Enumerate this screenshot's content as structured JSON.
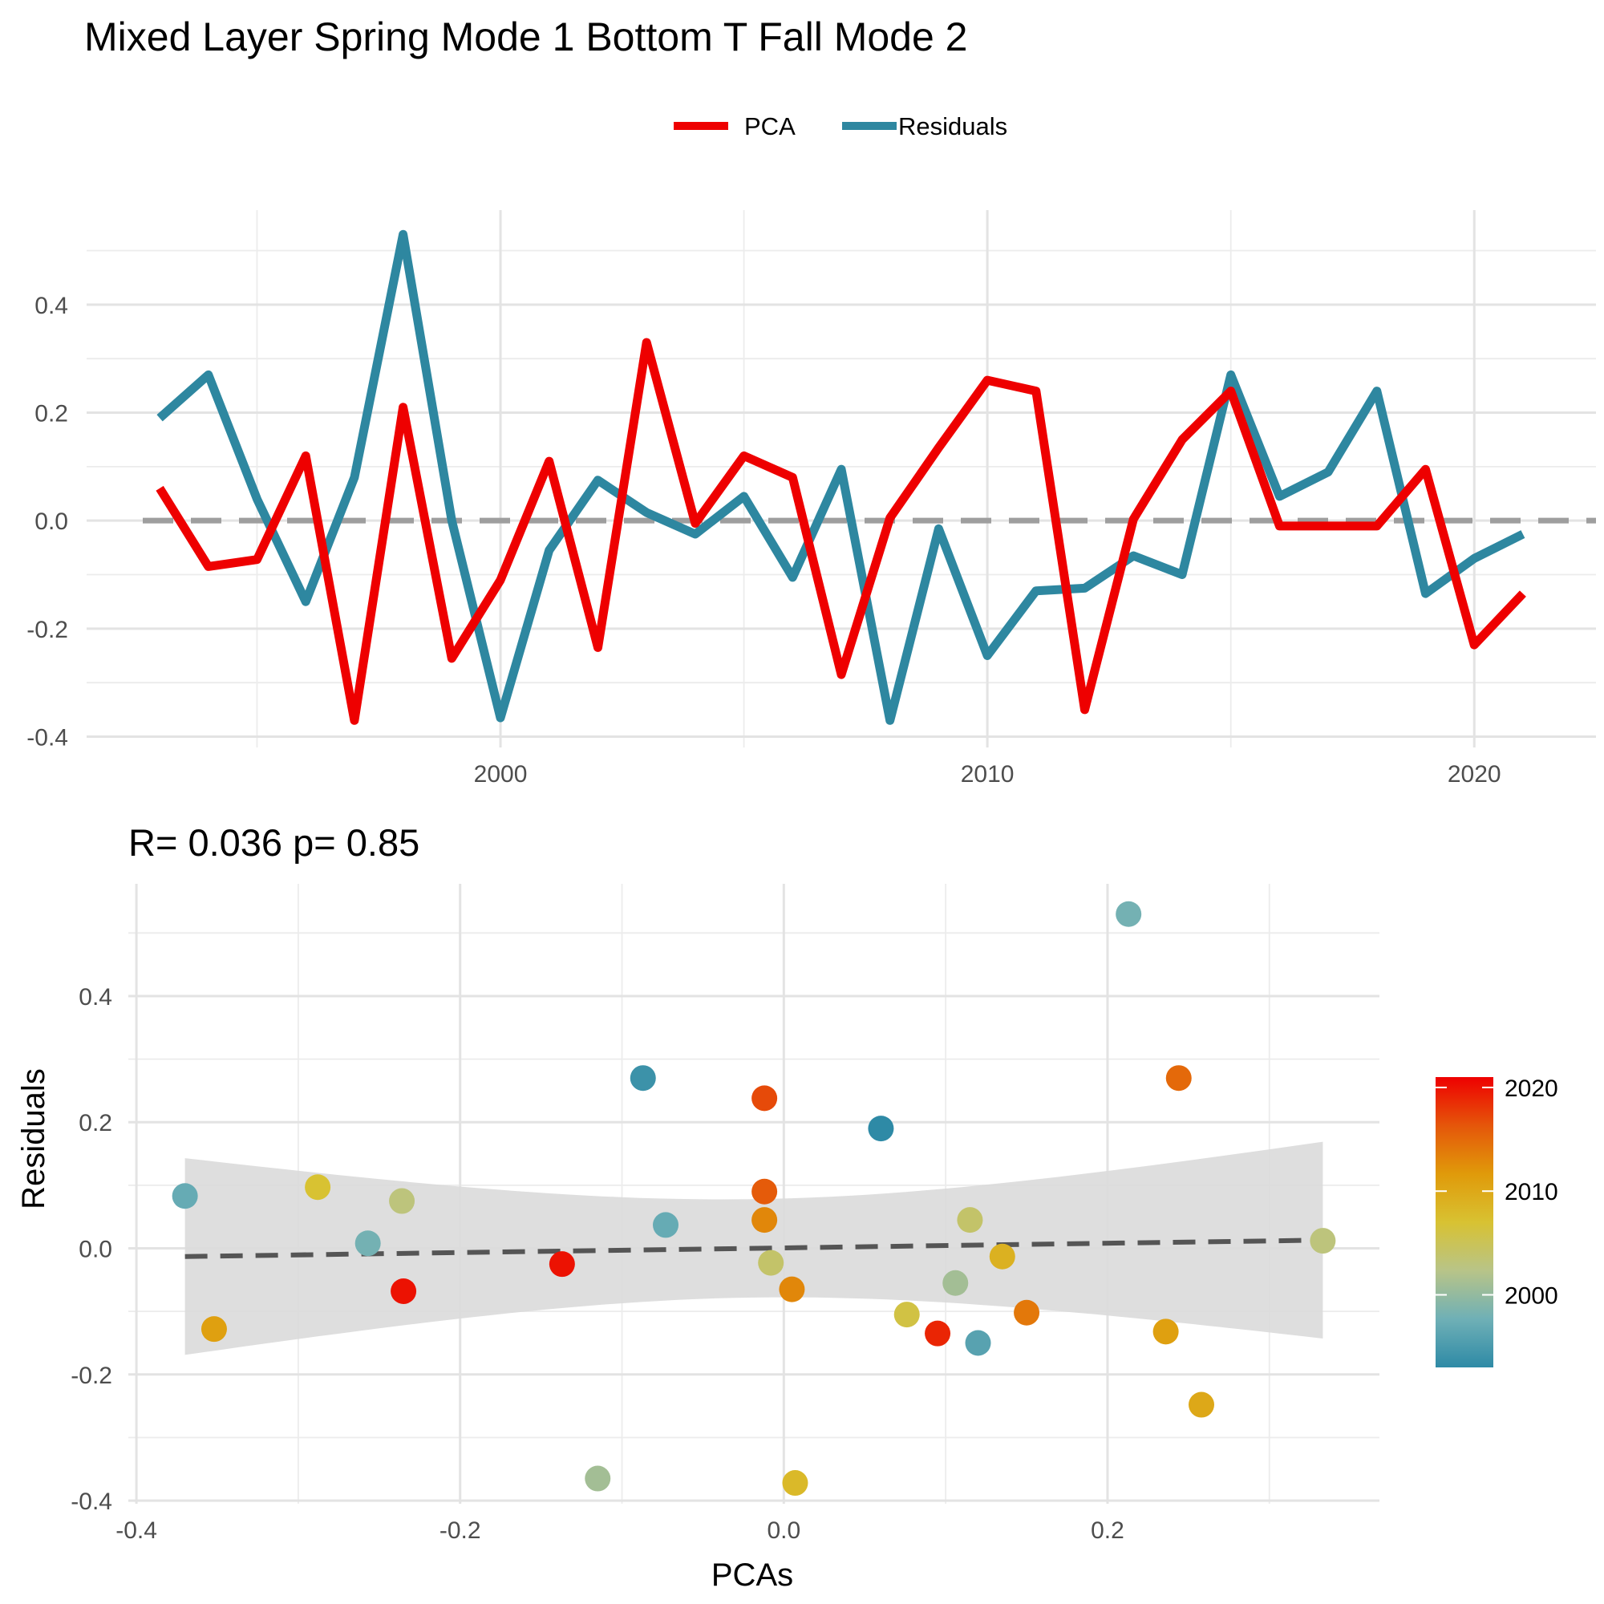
{
  "title": "Mixed Layer Spring Mode 1 Bottom T Fall Mode 2",
  "colors": {
    "pca": "#ee0000",
    "residuals": "#2e87a0",
    "zero_line": "#9e9e9e",
    "fit_line": "#555555",
    "ribbon": "#dadada"
  },
  "chart_data": [
    {
      "type": "line",
      "title": "",
      "xlabel": "",
      "ylabel": "",
      "legend": {
        "position": "top",
        "entries": [
          "PCA",
          "Residuals"
        ]
      },
      "x": [
        1993,
        1994,
        1995,
        1996,
        1997,
        1998,
        1999,
        2000,
        2001,
        2002,
        2003,
        2004,
        2005,
        2006,
        2007,
        2008,
        2009,
        2010,
        2011,
        2012,
        2013,
        2014,
        2015,
        2016,
        2017,
        2018,
        2019,
        2020,
        2021
      ],
      "series": [
        {
          "name": "PCA",
          "color": "#ee0000",
          "values": [
            0.06,
            -0.085,
            -0.072,
            0.12,
            -0.37,
            0.21,
            -0.255,
            -0.11,
            0.11,
            -0.235,
            0.33,
            -0.005,
            0.12,
            0.08,
            -0.285,
            0.005,
            0.135,
            0.26,
            0.24,
            -0.35,
            0.003,
            0.15,
            0.24,
            -0.01,
            -0.01,
            -0.01,
            0.095,
            -0.23,
            -0.135
          ]
        },
        {
          "name": "Residuals",
          "color": "#2e87a0",
          "values": [
            0.19,
            0.27,
            0.04,
            -0.15,
            0.08,
            0.53,
            0.0,
            -0.365,
            -0.055,
            0.075,
            0.015,
            -0.025,
            0.045,
            -0.105,
            0.095,
            -0.37,
            -0.015,
            -0.25,
            -0.13,
            -0.125,
            -0.065,
            -0.1,
            0.27,
            0.045,
            0.09,
            0.24,
            -0.135,
            -0.07,
            -0.025
          ]
        }
      ],
      "xticks": [
        2000,
        2010,
        2020
      ],
      "xlim": [
        1991.5,
        2022.5
      ],
      "yticks": [
        -0.4,
        -0.2,
        0.0,
        0.2,
        0.4
      ],
      "ytick_labels": [
        "-0.4",
        "-0.2",
        "0.0",
        "0.2",
        "0.4"
      ],
      "ylim": [
        -0.42,
        0.575
      ],
      "reference_line": {
        "y": 0.0,
        "style": "dashed"
      },
      "grid": true
    },
    {
      "type": "scatter",
      "title": "R= 0.036  p= 0.85",
      "xlabel": "PCAs",
      "ylabel": "Residuals",
      "xticks": [
        -0.4,
        -0.2,
        0.0,
        0.2
      ],
      "xtick_labels": [
        "-0.4",
        "-0.2",
        "0.0",
        "0.2"
      ],
      "xlim": [
        -0.405,
        0.368
      ],
      "yticks": [
        -0.4,
        -0.2,
        0.0,
        0.2,
        0.4
      ],
      "ytick_labels": [
        "-0.4",
        "-0.2",
        "0.0",
        "0.2",
        "0.4"
      ],
      "ylim": [
        -0.405,
        0.578
      ],
      "grid": true,
      "points": [
        {
          "x": -0.37,
          "y": 0.083,
          "year": 1997
        },
        {
          "x": -0.352,
          "y": -0.128,
          "year": 2011
        },
        {
          "x": -0.288,
          "y": 0.097,
          "year": 2007
        },
        {
          "x": -0.257,
          "y": 0.008,
          "year": 1998
        },
        {
          "x": -0.236,
          "y": 0.075,
          "year": 2003
        },
        {
          "x": -0.235,
          "y": -0.068,
          "year": 2020
        },
        {
          "x": -0.137,
          "y": -0.025,
          "year": 2020
        },
        {
          "x": -0.115,
          "y": -0.365,
          "year": 2001
        },
        {
          "x": -0.087,
          "y": 0.27,
          "year": 1994
        },
        {
          "x": -0.073,
          "y": 0.037,
          "year": 1997
        },
        {
          "x": -0.012,
          "y": 0.238,
          "year": 2017
        },
        {
          "x": -0.012,
          "y": 0.09,
          "year": 2016
        },
        {
          "x": -0.012,
          "y": 0.045,
          "year": 2013
        },
        {
          "x": -0.008,
          "y": -0.023,
          "year": 2004
        },
        {
          "x": 0.005,
          "y": -0.065,
          "year": 2013
        },
        {
          "x": 0.007,
          "y": -0.372,
          "year": 2008
        },
        {
          "x": 0.06,
          "y": 0.19,
          "year": 1993
        },
        {
          "x": 0.076,
          "y": -0.105,
          "year": 2006
        },
        {
          "x": 0.095,
          "y": -0.135,
          "year": 2019
        },
        {
          "x": 0.106,
          "y": -0.055,
          "year": 2001
        },
        {
          "x": 0.115,
          "y": 0.045,
          "year": 2004
        },
        {
          "x": 0.12,
          "y": -0.15,
          "year": 1996
        },
        {
          "x": 0.135,
          "y": -0.013,
          "year": 2009
        },
        {
          "x": 0.15,
          "y": -0.102,
          "year": 2014
        },
        {
          "x": 0.213,
          "y": 0.53,
          "year": 1998
        },
        {
          "x": 0.236,
          "y": -0.132,
          "year": 2011
        },
        {
          "x": 0.244,
          "y": 0.27,
          "year": 2015
        },
        {
          "x": 0.258,
          "y": -0.248,
          "year": 2010
        },
        {
          "x": 0.333,
          "y": 0.012,
          "year": 2003
        }
      ],
      "fit_line": {
        "x": [
          -0.37,
          0.333
        ],
        "y": [
          -0.013,
          0.013
        ],
        "style": "dashed"
      },
      "confidence_band": {
        "x": [
          -0.37,
          0.333
        ],
        "upper": [
          0.15,
          0.162
        ],
        "lower": [
          -0.175,
          -0.137
        ]
      },
      "colorbar": {
        "ticks": [
          2000,
          2010,
          2020
        ],
        "tick_labels": [
          "2000",
          "2010",
          "2020"
        ],
        "range": [
          1993,
          2021
        ],
        "colors": [
          "#2e8aa6",
          "#6fb0b6",
          "#b8c488",
          "#d8c232",
          "#e09a0a",
          "#e5560a",
          "#ee0000"
        ]
      }
    }
  ]
}
